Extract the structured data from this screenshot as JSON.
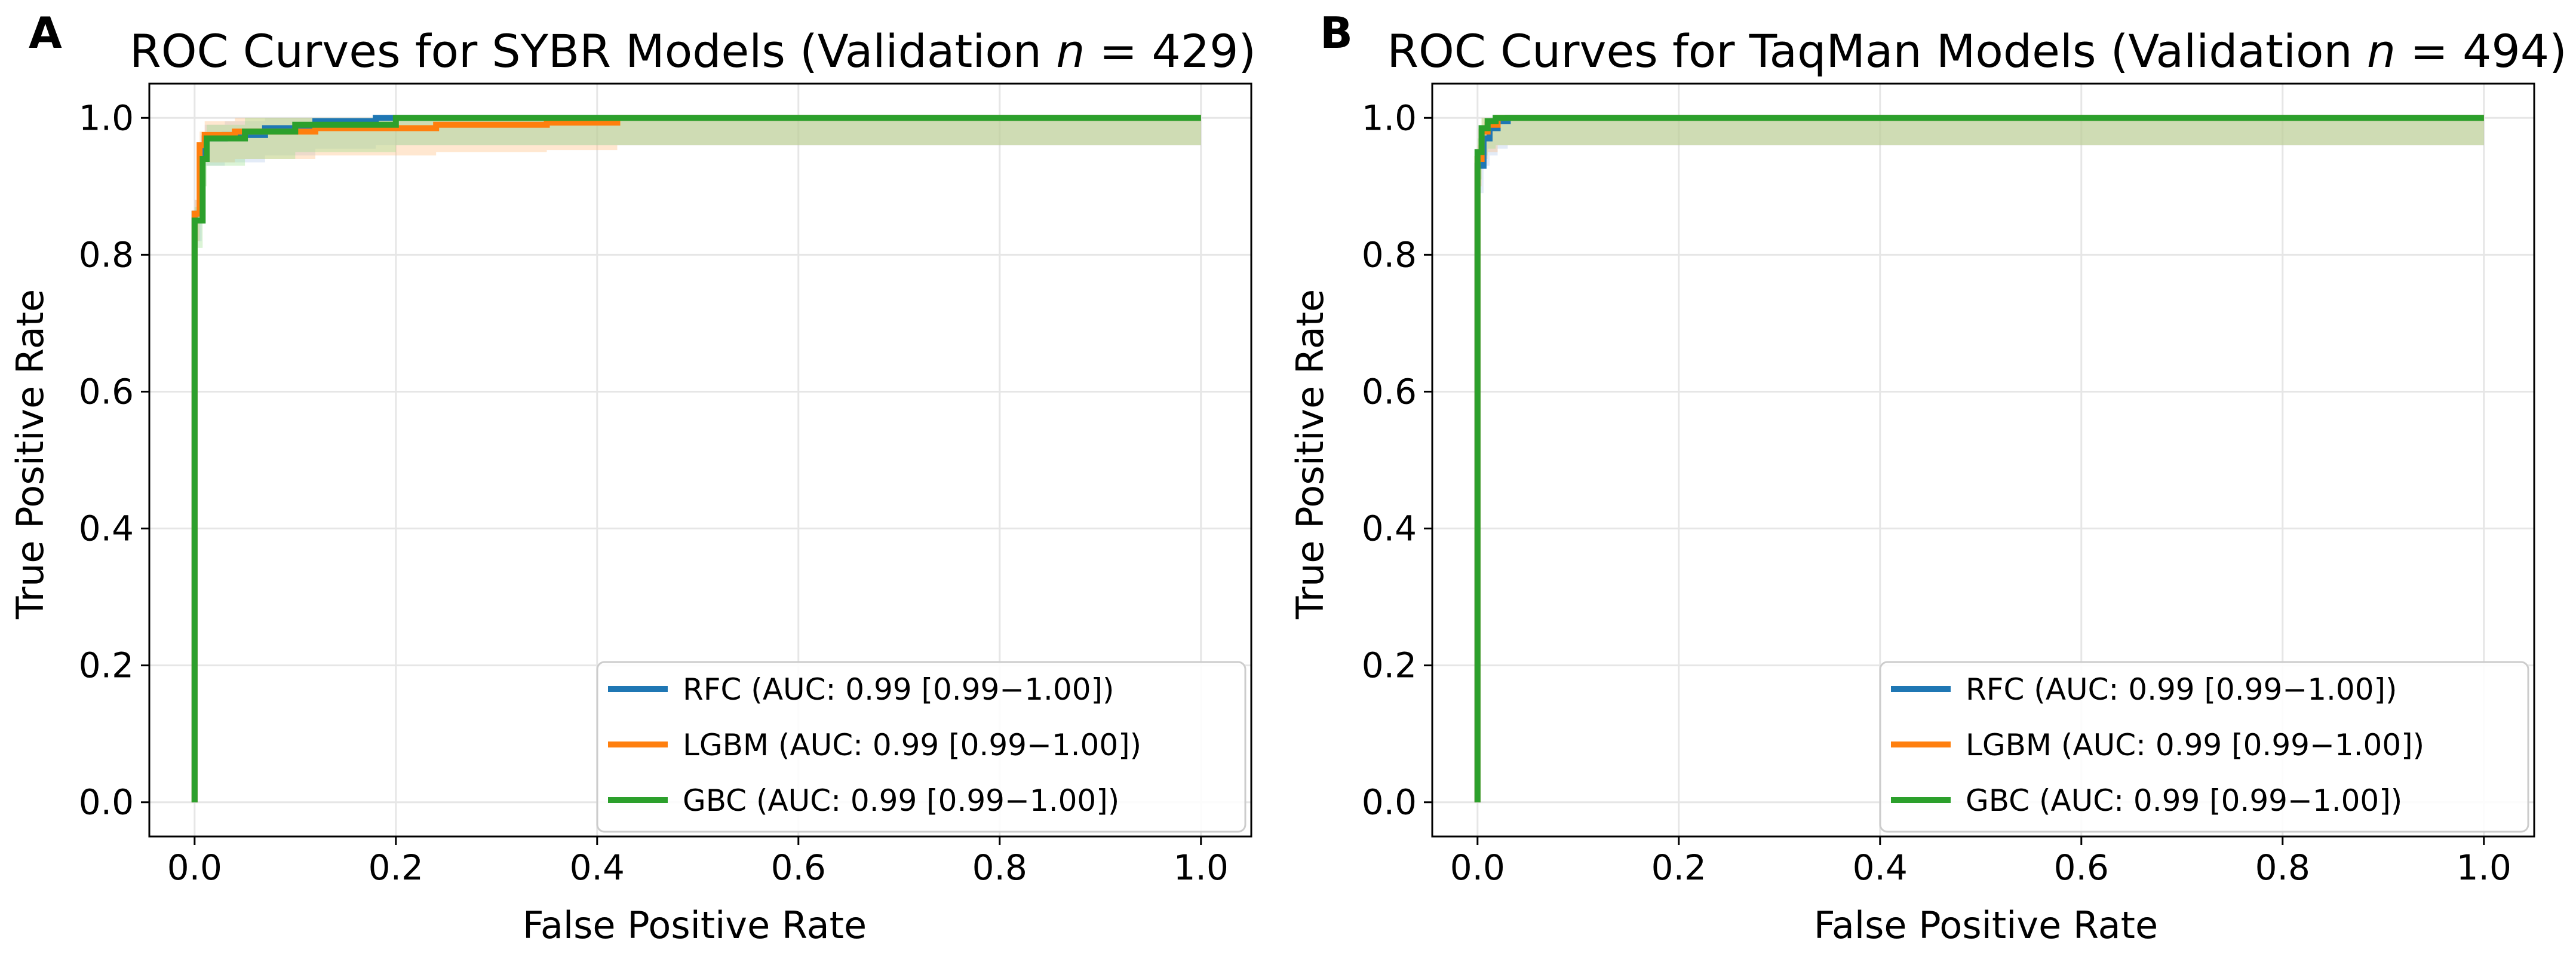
{
  "chart_data": [
    {
      "type": "line",
      "panel_label": "A",
      "title": "ROC Curves for SYBR Models (Validation ",
      "title_n": "n",
      "title_suffix": " = 429)",
      "xlabel": "False Positive Rate",
      "ylabel": "True Positive Rate",
      "xlim": [
        -0.045,
        1.05
      ],
      "ylim": [
        -0.05,
        1.05
      ],
      "xticks": [
        0.0,
        0.2,
        0.4,
        0.6,
        0.8,
        1.0
      ],
      "yticks": [
        0.0,
        0.2,
        0.4,
        0.6,
        0.8,
        1.0
      ],
      "xtick_labels": [
        "0.0",
        "0.2",
        "0.4",
        "0.6",
        "0.8",
        "1.0"
      ],
      "ytick_labels": [
        "0.0",
        "0.2",
        "0.4",
        "0.6",
        "0.8",
        "1.0"
      ],
      "grid": true,
      "legend_position": "lower-right",
      "series": [
        {
          "name": "RFC (AUC: 0.99 [0.99−1.00])",
          "color": "#1f77b4",
          "band_color": "#aec7e8",
          "points": [
            [
              0,
              0
            ],
            [
              0,
              0.86
            ],
            [
              0.007,
              0.86
            ],
            [
              0.007,
              0.95
            ],
            [
              0.01,
              0.95
            ],
            [
              0.01,
              0.97
            ],
            [
              0.03,
              0.97
            ],
            [
              0.03,
              0.975
            ],
            [
              0.07,
              0.975
            ],
            [
              0.07,
              0.985
            ],
            [
              0.12,
              0.985
            ],
            [
              0.12,
              0.995
            ],
            [
              0.18,
              0.995
            ],
            [
              0.18,
              1.0
            ],
            [
              1.0,
              1.0
            ]
          ]
        },
        {
          "name": "LGBM (AUC: 0.99 [0.99−1.00])",
          "color": "#ff7f0e",
          "band_color": "#ffbb78",
          "points": [
            [
              0,
              0
            ],
            [
              0,
              0.86
            ],
            [
              0.005,
              0.86
            ],
            [
              0.005,
              0.96
            ],
            [
              0.01,
              0.96
            ],
            [
              0.01,
              0.975
            ],
            [
              0.04,
              0.975
            ],
            [
              0.04,
              0.98
            ],
            [
              0.12,
              0.98
            ],
            [
              0.12,
              0.985
            ],
            [
              0.24,
              0.985
            ],
            [
              0.24,
              0.99
            ],
            [
              0.35,
              0.99
            ],
            [
              0.35,
              0.993
            ],
            [
              0.42,
              0.993
            ],
            [
              0.42,
              1.0
            ],
            [
              1.0,
              1.0
            ]
          ]
        },
        {
          "name": "GBC (AUC: 0.99 [0.99−1.00])",
          "color": "#2ca02c",
          "band_color": "#98df8a",
          "points": [
            [
              0,
              0
            ],
            [
              0,
              0.85
            ],
            [
              0.008,
              0.85
            ],
            [
              0.008,
              0.94
            ],
            [
              0.012,
              0.94
            ],
            [
              0.012,
              0.97
            ],
            [
              0.05,
              0.97
            ],
            [
              0.05,
              0.98
            ],
            [
              0.1,
              0.98
            ],
            [
              0.1,
              0.99
            ],
            [
              0.2,
              0.99
            ],
            [
              0.2,
              1.0
            ],
            [
              1.0,
              1.0
            ]
          ]
        }
      ]
    },
    {
      "type": "line",
      "panel_label": "B",
      "title": "ROC Curves for TaqMan Models (Validation ",
      "title_n": "n",
      "title_suffix": " = 494)",
      "xlabel": "False Positive Rate",
      "ylabel": "True Positive Rate",
      "xlim": [
        -0.045,
        1.05
      ],
      "ylim": [
        -0.05,
        1.05
      ],
      "xticks": [
        0.0,
        0.2,
        0.4,
        0.6,
        0.8,
        1.0
      ],
      "yticks": [
        0.0,
        0.2,
        0.4,
        0.6,
        0.8,
        1.0
      ],
      "xtick_labels": [
        "0.0",
        "0.2",
        "0.4",
        "0.6",
        "0.8",
        "1.0"
      ],
      "ytick_labels": [
        "0.0",
        "0.2",
        "0.4",
        "0.6",
        "0.8",
        "1.0"
      ],
      "grid": true,
      "legend_position": "lower-right",
      "series": [
        {
          "name": "RFC (AUC: 0.99 [0.99−1.00])",
          "color": "#1f77b4",
          "band_color": "#aec7e8",
          "points": [
            [
              0,
              0
            ],
            [
              0,
              0.93
            ],
            [
              0.006,
              0.93
            ],
            [
              0.006,
              0.97
            ],
            [
              0.012,
              0.97
            ],
            [
              0.012,
              0.985
            ],
            [
              0.02,
              0.985
            ],
            [
              0.02,
              0.995
            ],
            [
              0.03,
              0.995
            ],
            [
              0.03,
              1.0
            ],
            [
              1.0,
              1.0
            ]
          ]
        },
        {
          "name": "LGBM (AUC: 0.99 [0.99−1.00])",
          "color": "#ff7f0e",
          "band_color": "#ffbb78",
          "points": [
            [
              0,
              0
            ],
            [
              0,
              0.94
            ],
            [
              0.004,
              0.94
            ],
            [
              0.004,
              0.98
            ],
            [
              0.01,
              0.98
            ],
            [
              0.01,
              0.99
            ],
            [
              0.02,
              0.99
            ],
            [
              0.02,
              1.0
            ],
            [
              1.0,
              1.0
            ]
          ]
        },
        {
          "name": "GBC (AUC: 0.99 [0.99−1.00])",
          "color": "#2ca02c",
          "band_color": "#98df8a",
          "points": [
            [
              0,
              0
            ],
            [
              0,
              0.95
            ],
            [
              0.004,
              0.95
            ],
            [
              0.004,
              0.985
            ],
            [
              0.01,
              0.985
            ],
            [
              0.01,
              0.995
            ],
            [
              0.018,
              0.995
            ],
            [
              0.018,
              1.0
            ],
            [
              1.0,
              1.0
            ]
          ]
        }
      ]
    }
  ]
}
